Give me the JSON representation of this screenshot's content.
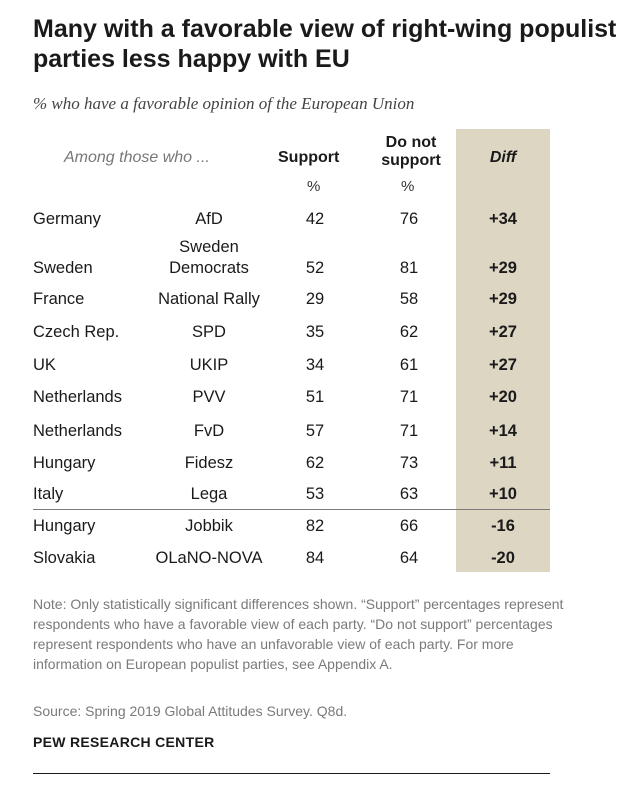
{
  "title": "Many with a favorable view of right-wing populist parties less happy with EU",
  "subtitle": "% who have a favorable opinion of the European Union",
  "chart_data": {
    "type": "table",
    "columns": {
      "among": "Among those who ...",
      "support": "Support",
      "not_support": "Do not support",
      "diff": "Diff",
      "unit": "%"
    },
    "rows": [
      {
        "country": "Germany",
        "party": "AfD",
        "support": 42,
        "not_support": 76,
        "diff": "+34"
      },
      {
        "country": "Sweden",
        "party": "Sweden Democrats",
        "support": 52,
        "not_support": 81,
        "diff": "+29"
      },
      {
        "country": "France",
        "party": "National Rally",
        "support": 29,
        "not_support": 58,
        "diff": "+29"
      },
      {
        "country": "Czech Rep.",
        "party": "SPD",
        "support": 35,
        "not_support": 62,
        "diff": "+27"
      },
      {
        "country": "UK",
        "party": "UKIP",
        "support": 34,
        "not_support": 61,
        "diff": "+27"
      },
      {
        "country": "Netherlands",
        "party": "PVV",
        "support": 51,
        "not_support": 71,
        "diff": "+20"
      },
      {
        "country": "Netherlands",
        "party": "FvD",
        "support": 57,
        "not_support": 71,
        "diff": "+14"
      },
      {
        "country": "Hungary",
        "party": "Fidesz",
        "support": 62,
        "not_support": 73,
        "diff": "+11"
      },
      {
        "country": "Italy",
        "party": "Lega",
        "support": 53,
        "not_support": 63,
        "diff": "+10"
      },
      {
        "country": "Hungary",
        "party": "Jobbik",
        "support": 82,
        "not_support": 66,
        "diff": "-16"
      },
      {
        "country": "Slovakia",
        "party": "OLaNO-NOVA",
        "support": 84,
        "not_support": 64,
        "diff": "-20"
      }
    ]
  },
  "note": "Note: Only statistically significant differences shown. “Support” percentages represent respondents who have a favorable view of each party. “Do not support” percentages represent respondents who have an unfavorable view of each party. For more information on European populist parties, see Appendix A.",
  "source": "Source: Spring 2019 Global Attitudes Survey. Q8d.",
  "org": "PEW RESEARCH CENTER"
}
